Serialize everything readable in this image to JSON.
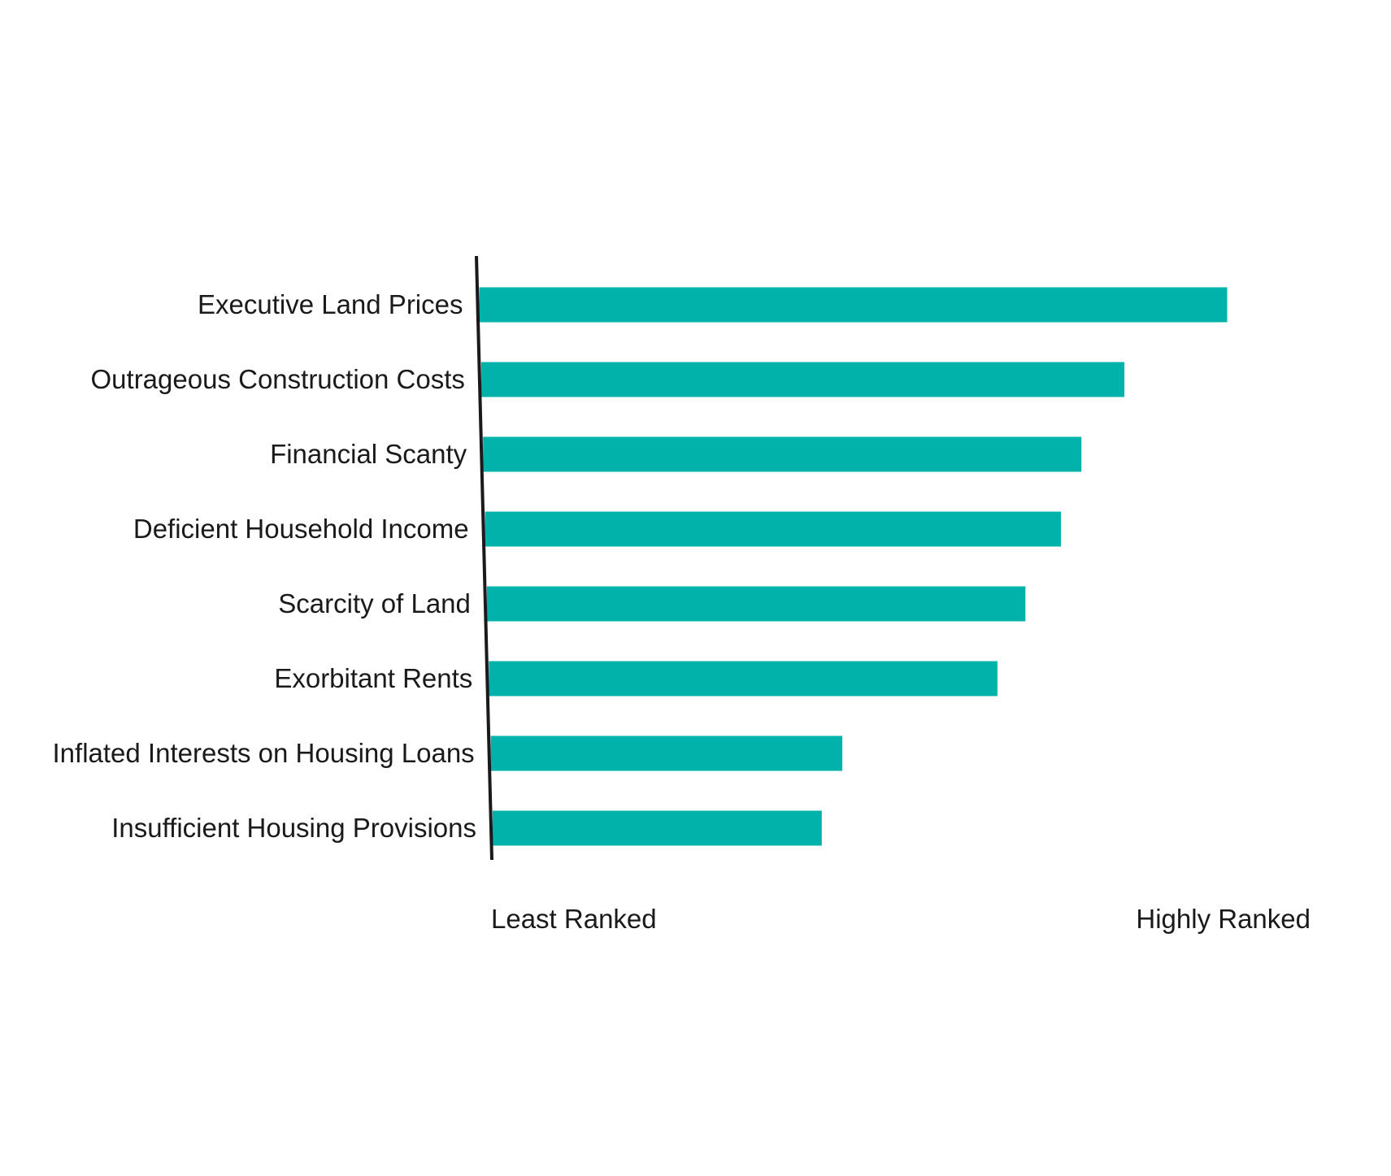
{
  "chart_data": {
    "type": "bar",
    "orientation": "horizontal",
    "title": "",
    "categories": [
      "Executive Land Prices",
      "Outrageous Construction Costs",
      "Financial Scanty",
      "Deficient Household Income",
      "Scarcity of Land",
      "Exorbitant Rents",
      "Inflated Interests on Housing Loans",
      "Insufficient Housing Provisions"
    ],
    "values": [
      100,
      86,
      80,
      77,
      72,
      68,
      47,
      44
    ],
    "xlim": [
      0,
      110
    ],
    "axis_end_labels": {
      "min": "Least Ranked",
      "max": "Highly Ranked"
    },
    "grid": false,
    "legend": "none",
    "bar_color": "#00b2a9",
    "axis_color": "#1a1a1a"
  }
}
